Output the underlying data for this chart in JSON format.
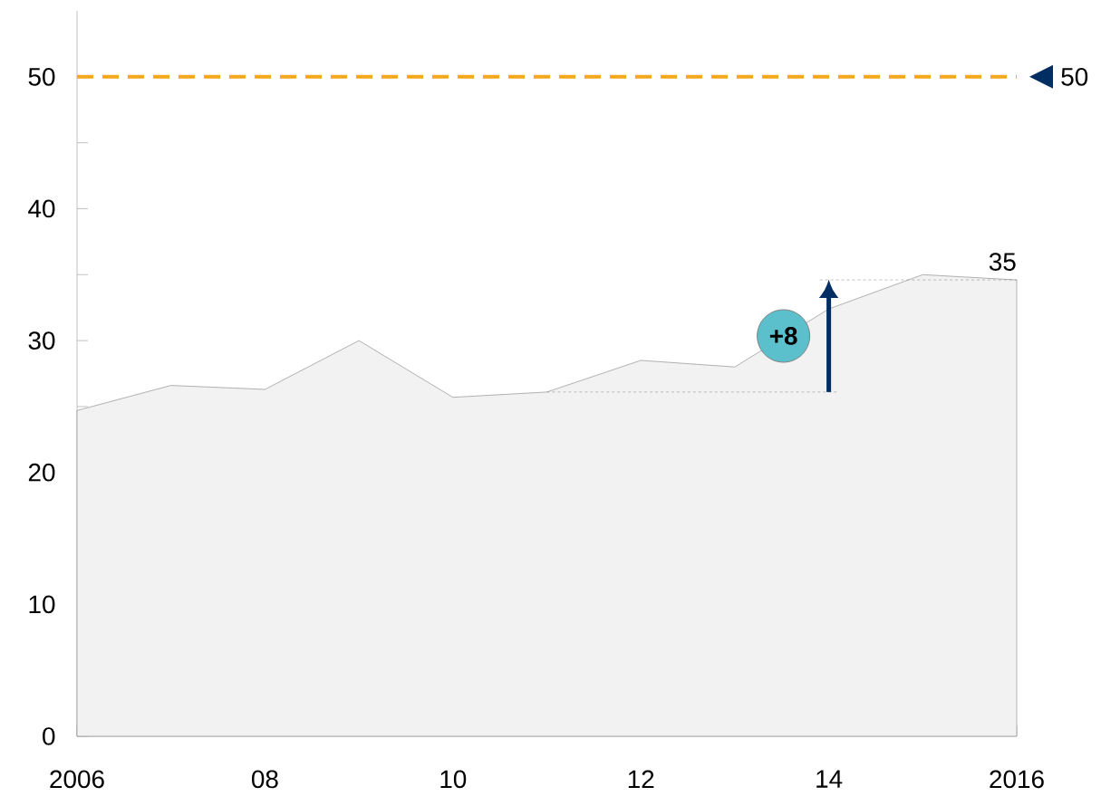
{
  "chart_data": {
    "type": "area",
    "x": [
      2006,
      2007,
      2008,
      2009,
      2010,
      2011,
      2012,
      2013,
      2014,
      2015,
      2016
    ],
    "values": [
      24.7,
      26.6,
      26.3,
      30.0,
      25.7,
      26.1,
      28.5,
      28.0,
      32.4,
      35.0,
      34.6
    ],
    "color": "#f2f2f2",
    "xlim": [
      2006,
      2016
    ],
    "xticks": [
      {
        "value": 2006,
        "label": "2006"
      },
      {
        "value": 2007,
        "label": null
      },
      {
        "value": 2008,
        "label": "08"
      },
      {
        "value": 2009,
        "label": null
      },
      {
        "value": 2010,
        "label": "10"
      },
      {
        "value": 2011,
        "label": null
      },
      {
        "value": 2012,
        "label": "12"
      },
      {
        "value": 2013,
        "label": null
      },
      {
        "value": 2014,
        "label": "14"
      },
      {
        "value": 2015,
        "label": null
      },
      {
        "value": 2016,
        "label": "2016"
      }
    ],
    "ylim": [
      0,
      55
    ],
    "yticks": [
      0,
      {
        "value": 5,
        "label": null
      },
      10,
      {
        "value": 15,
        "label": null
      },
      20,
      {
        "value": 25,
        "label": null
      },
      30,
      {
        "value": 35,
        "label": null
      },
      40,
      {
        "value": 45,
        "label": null
      },
      50
    ],
    "ref_lines": [
      {
        "axis": "y",
        "value": 50,
        "label": "50",
        "color": "#f5a81c",
        "line_style": "dashed"
      }
    ],
    "annotations": [
      {
        "text": "35",
        "x": 2016,
        "y": 34.6
      },
      "+8"
    ],
    "grid": false
  }
}
